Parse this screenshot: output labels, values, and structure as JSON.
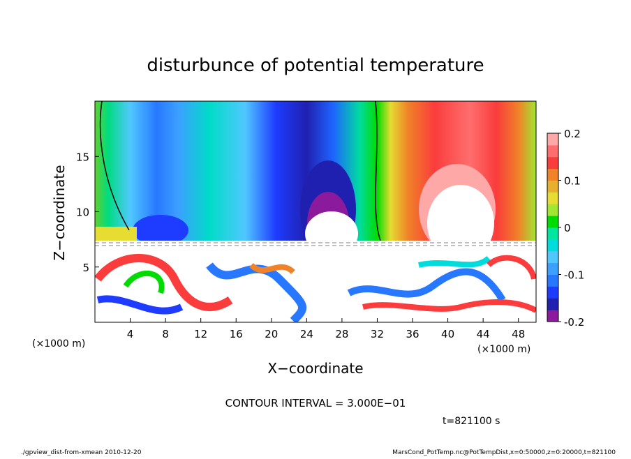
{
  "chart_data": {
    "type": "contour",
    "title": "disturbunce of potential temperature",
    "xlabel": "X−coordinate",
    "ylabel": "Z−coordinate",
    "x_unit": "(×1000 m)",
    "y_unit": "(×1000 m)",
    "xlim": [
      0,
      50
    ],
    "xticks": [
      4,
      8,
      12,
      16,
      20,
      24,
      28,
      32,
      36,
      40,
      44,
      48
    ],
    "ylim": [
      0,
      20
    ],
    "yticks": [
      5,
      10,
      15
    ],
    "colorbar": {
      "lim": [
        -0.2,
        0.2
      ],
      "ticks": [
        -0.2,
        -0.1,
        0,
        0.1,
        0.2
      ],
      "colors": [
        "#8b1a9c",
        "#2020b0",
        "#1e3cff",
        "#2878ff",
        "#3ca0ff",
        "#50c8ff",
        "#00dcdc",
        "#00e6a0",
        "#00dc00",
        "#a0e632",
        "#e6dc32",
        "#e6af2d",
        "#f08228",
        "#fa3c3c",
        "#ff6e6e",
        "#ffa8a8"
      ]
    },
    "contour_interval": "CONTOUR INTERVAL = 3.000E−01",
    "time": "t=821100 s",
    "footer_left": "./gpview_dist-from-xmean  2010-12-20",
    "footer_right": "MarsCond_PotTemp.nc@PotTempDist,x=0:50000,z=0:20000,t=821100"
  }
}
